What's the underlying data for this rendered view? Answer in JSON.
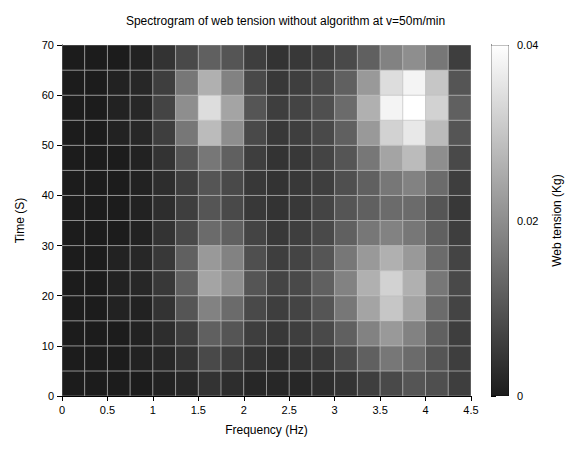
{
  "chart_data": {
    "type": "heatmap",
    "title": "Spectrogram of web tension without algorithm at v=50m/min",
    "x_label": "Frequency (Hz)",
    "y_label": "Time (S)",
    "x_bins": [
      0,
      0.25,
      0.5,
      0.75,
      1,
      1.25,
      1.5,
      1.75,
      2,
      2.25,
      2.5,
      2.75,
      3,
      3.25,
      3.5,
      3.75,
      4,
      4.25,
      4.5
    ],
    "y_bins": [
      0,
      5,
      10,
      15,
      20,
      25,
      30,
      35,
      40,
      45,
      50,
      55,
      60,
      65,
      70
    ],
    "cells": [
      [
        0,
        0,
        0,
        0,
        0.001,
        0.002,
        0.004,
        0.003,
        0.002,
        0.002,
        0.002,
        0.003,
        0.004,
        0.006,
        0.008,
        0.01,
        0.009,
        0.006
      ],
      [
        0,
        0,
        0,
        0.001,
        0.002,
        0.004,
        0.008,
        0.006,
        0.004,
        0.003,
        0.004,
        0.005,
        0.008,
        0.012,
        0.016,
        0.014,
        0.01,
        0.006
      ],
      [
        0,
        0,
        0,
        0.001,
        0.003,
        0.006,
        0.012,
        0.01,
        0.006,
        0.005,
        0.006,
        0.008,
        0.012,
        0.018,
        0.022,
        0.018,
        0.012,
        0.006
      ],
      [
        0,
        0,
        0.001,
        0.001,
        0.004,
        0.01,
        0.018,
        0.014,
        0.008,
        0.006,
        0.007,
        0.01,
        0.016,
        0.024,
        0.03,
        0.024,
        0.014,
        0.007
      ],
      [
        0,
        0,
        0.001,
        0.002,
        0.005,
        0.012,
        0.024,
        0.02,
        0.01,
        0.007,
        0.008,
        0.012,
        0.018,
        0.026,
        0.032,
        0.026,
        0.016,
        0.008
      ],
      [
        0,
        0,
        0.001,
        0.002,
        0.005,
        0.012,
        0.022,
        0.018,
        0.009,
        0.006,
        0.007,
        0.01,
        0.016,
        0.022,
        0.026,
        0.022,
        0.014,
        0.007
      ],
      [
        0,
        0,
        0,
        0.001,
        0.004,
        0.008,
        0.014,
        0.012,
        0.007,
        0.005,
        0.006,
        0.008,
        0.012,
        0.016,
        0.018,
        0.016,
        0.012,
        0.006
      ],
      [
        0,
        0,
        0,
        0.001,
        0.003,
        0.006,
        0.01,
        0.008,
        0.005,
        0.004,
        0.005,
        0.007,
        0.01,
        0.012,
        0.014,
        0.014,
        0.01,
        0.005
      ],
      [
        0,
        0,
        0,
        0.001,
        0.003,
        0.006,
        0.01,
        0.008,
        0.005,
        0.004,
        0.005,
        0.006,
        0.009,
        0.012,
        0.016,
        0.018,
        0.014,
        0.006
      ],
      [
        0,
        0,
        0,
        0.001,
        0.004,
        0.01,
        0.016,
        0.012,
        0.006,
        0.004,
        0.005,
        0.007,
        0.01,
        0.016,
        0.024,
        0.028,
        0.02,
        0.008
      ],
      [
        0,
        0,
        0.001,
        0.002,
        0.006,
        0.016,
        0.028,
        0.02,
        0.008,
        0.005,
        0.006,
        0.008,
        0.012,
        0.022,
        0.032,
        0.036,
        0.028,
        0.01
      ],
      [
        0,
        0,
        0.001,
        0.002,
        0.007,
        0.02,
        0.034,
        0.024,
        0.01,
        0.006,
        0.007,
        0.009,
        0.014,
        0.026,
        0.038,
        0.04,
        0.032,
        0.012
      ],
      [
        0,
        0,
        0.001,
        0.002,
        0.006,
        0.016,
        0.026,
        0.018,
        0.008,
        0.005,
        0.006,
        0.008,
        0.012,
        0.022,
        0.034,
        0.038,
        0.03,
        0.01
      ],
      [
        0,
        0,
        0,
        0.001,
        0.004,
        0.008,
        0.012,
        0.01,
        0.006,
        0.004,
        0.005,
        0.006,
        0.008,
        0.012,
        0.018,
        0.02,
        0.016,
        0.006
      ]
    ],
    "xlim": [
      0,
      4.5
    ],
    "xticks": [
      0,
      0.5,
      1,
      1.5,
      2,
      2.5,
      3,
      3.5,
      4,
      4.5
    ],
    "ylim": [
      0,
      70
    ],
    "yticks": [
      0,
      10,
      20,
      30,
      40,
      50,
      60,
      70
    ],
    "colorbar": {
      "label": "Web tension (Kg)",
      "range": [
        0,
        0.04
      ],
      "ticks": [
        0,
        0.02,
        0.04
      ]
    }
  }
}
